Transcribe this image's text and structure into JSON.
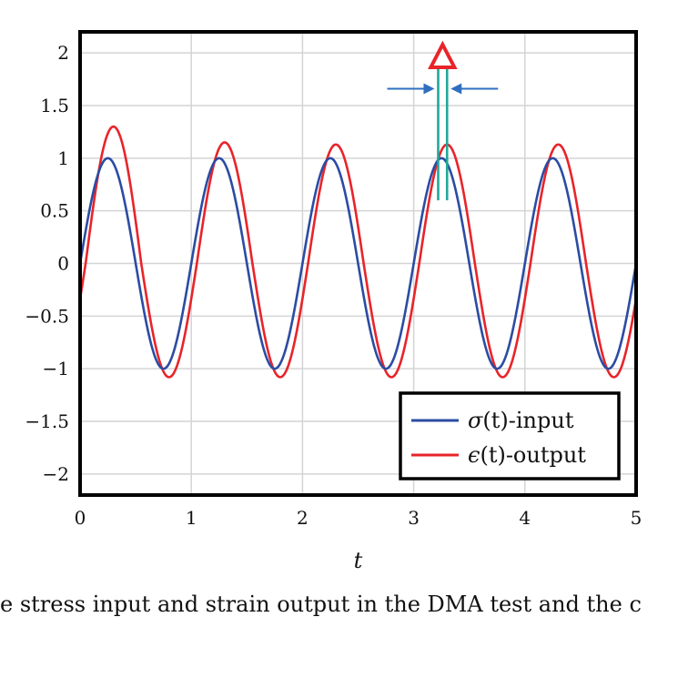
{
  "chart_data": {
    "type": "line",
    "title": "",
    "xlabel": "t",
    "ylabel": "",
    "xlim": [
      0,
      5
    ],
    "ylim": [
      -2.2,
      2.2
    ],
    "xticks": [
      "0",
      "1",
      "2",
      "3",
      "4",
      "5"
    ],
    "yticks": [
      "2",
      "1.5",
      "1",
      "0.5",
      "0",
      "−0.5",
      "−1",
      "−1.5",
      "−2"
    ],
    "ytick_values": [
      2,
      1.5,
      1,
      0.5,
      0,
      -0.5,
      -1,
      -1.5,
      -2
    ],
    "xtick_values": [
      0,
      1,
      2,
      3,
      4,
      5
    ],
    "grid": true,
    "legend_position": "bottom-right",
    "series": [
      {
        "name": "σ(t)-input",
        "label_symbol": "σ",
        "label_suffix": "(t)-input",
        "color": "#2b4ca3",
        "function": "sin",
        "amplitude": 1.0,
        "frequency": 1.0,
        "phase_lag": 0.0
      },
      {
        "name": "ϵ(t)-output",
        "label_symbol": "ϵ",
        "label_suffix": "(t)-output",
        "color": "#e8242a",
        "function": "sin",
        "amplitude_peaks": [
          1.3,
          1.15,
          1.13,
          1.13,
          1.13
        ],
        "trough_value": -1.08,
        "frequency": 1.0,
        "phase_lag": 0.05
      }
    ],
    "annotation": {
      "symbol": "Δ",
      "meaning": "phase lag between input and output peaks",
      "x_input_peak": 3.22,
      "x_output_peak": 3.3,
      "color": "#e8242a",
      "marker_color": "#1fa89a",
      "arrow_color": "#2f6fc0"
    }
  },
  "caption": "e stress input and strain output in the DMA test and the c"
}
